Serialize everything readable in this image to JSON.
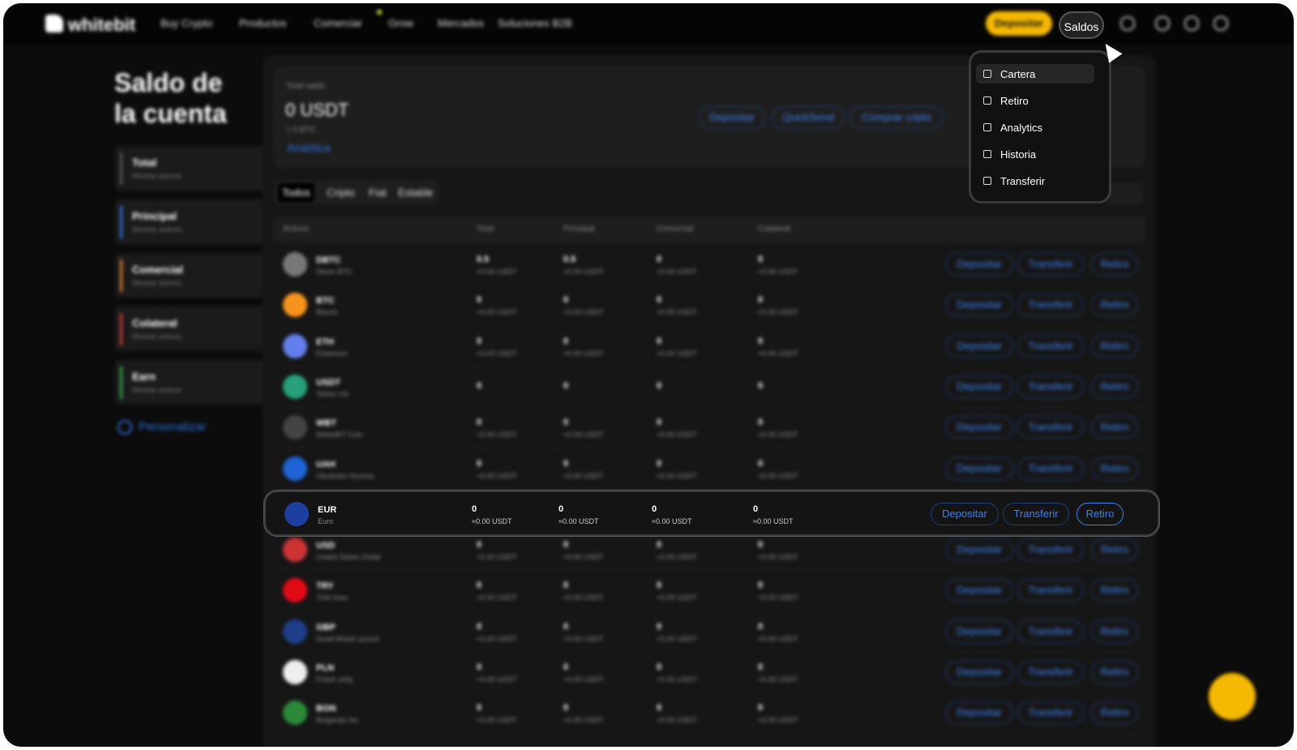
{
  "nav": {
    "logo": "whitebit",
    "items": [
      "Buy Crypto",
      "Productos",
      "Comerciar",
      "Grow",
      "Mercados",
      "Soluciones B2B"
    ],
    "deposit": "Depositar",
    "balances": "Saldos"
  },
  "dropdown": [
    "Cartera",
    "Retiro",
    "Analytics",
    "Historia",
    "Transferir"
  ],
  "sidebar": {
    "title_line1": "Saldo de",
    "title_line2": "la cuenta",
    "accounts": [
      {
        "name": "Total",
        "sub": "Mostrar activos"
      },
      {
        "name": "Principal",
        "sub": "Mostrar activos"
      },
      {
        "name": "Comercial",
        "sub": "Mostrar activos"
      },
      {
        "name": "Colateral",
        "sub": "Mostrar activos"
      },
      {
        "name": "Earn",
        "sub": "Mostrar activos"
      }
    ],
    "customize": "Personalizar"
  },
  "summary": {
    "label": "Total saldo",
    "amount": "0 USDT",
    "btc": "≈ 0 BTC",
    "analytics": "Analítica",
    "buttons": [
      "Depositar",
      "QuickSend",
      "Comprar cripto"
    ]
  },
  "filters": [
    "Todos",
    "Cripto",
    "Fiat",
    "Estable"
  ],
  "table": {
    "header": [
      "Activos",
      "Total",
      "Principal",
      "Comercial",
      "Colateral"
    ],
    "actions": [
      "Depositar",
      "Transferir",
      "Retiro"
    ],
    "rows": [
      {
        "ticker": "DBTC",
        "name": "Demo BTC",
        "cells": [
          {
            "amount": 0.5,
            "usdt": "≈0.00 USDT"
          },
          {
            "amount": 0.5,
            "usdt": "≈0.00 USDT"
          },
          {
            "amount": 0,
            "usdt": "≈0.00 USDT"
          },
          {
            "amount": 0,
            "usdt": "≈0.00 USDT"
          }
        ]
      },
      {
        "ticker": "BTC",
        "name": "Bitcoin",
        "cells": [
          {
            "amount": 0,
            "usdt": "≈0.00 USDT"
          },
          {
            "amount": 0,
            "usdt": "≈0.00 USDT"
          },
          {
            "amount": 0,
            "usdt": "≈0.00 USDT"
          },
          {
            "amount": 0,
            "usdt": "≈0.00 USDT"
          }
        ]
      },
      {
        "ticker": "ETH",
        "name": "Ethereum",
        "cells": [
          {
            "amount": 0,
            "usdt": "≈0.00 USDT"
          },
          {
            "amount": 0,
            "usdt": "≈0.00 USDT"
          },
          {
            "amount": 0,
            "usdt": "≈0.00 USDT"
          },
          {
            "amount": 0,
            "usdt": "≈0.00 USDT"
          }
        ]
      },
      {
        "ticker": "USDT",
        "name": "Tether US",
        "cells": [
          {
            "amount": 0
          },
          {
            "amount": 0
          },
          {
            "amount": 0
          },
          {
            "amount": 0
          }
        ]
      },
      {
        "ticker": "WBT",
        "name": "WhiteBIT Coin",
        "cells": [
          {
            "amount": 0,
            "usdt": "≈0.00 USDT"
          },
          {
            "amount": 0,
            "usdt": "≈0.00 USDT"
          },
          {
            "amount": 0,
            "usdt": "≈0.00 USDT"
          },
          {
            "amount": 0,
            "usdt": "≈0.00 USDT"
          }
        ]
      },
      {
        "ticker": "UAH",
        "name": "Ukrainian Hryvnia",
        "cells": [
          {
            "amount": 0,
            "usdt": "≈0.00 USDT"
          },
          {
            "amount": 0,
            "usdt": "≈0.00 USDT"
          },
          {
            "amount": 0,
            "usdt": "≈0.00 USDT"
          },
          {
            "amount": 0,
            "usdt": "≈0.00 USDT"
          }
        ]
      },
      {
        "ticker": "EUR",
        "name": "Euro",
        "cells": [
          {
            "amount": 0,
            "usdt": "≈0.00 USDT"
          },
          {
            "amount": 0,
            "usdt": "≈0.00 USDT"
          },
          {
            "amount": 0,
            "usdt": "≈0.00 USDT"
          },
          {
            "amount": 0,
            "usdt": "≈0.00 USDT"
          }
        ]
      },
      {
        "ticker": "USD",
        "name": "United States Dollar",
        "cells": [
          {
            "amount": 0,
            "usdt": "≈0.00 USDT"
          },
          {
            "amount": 0,
            "usdt": "≈0.00 USDT"
          },
          {
            "amount": 0,
            "usdt": "≈0.00 USDT"
          },
          {
            "amount": 0,
            "usdt": "≈0.00 USDT"
          }
        ]
      },
      {
        "ticker": "TRY",
        "name": "Türk lirası",
        "cells": [
          {
            "amount": 0,
            "usdt": "≈0.00 USDT"
          },
          {
            "amount": 0,
            "usdt": "≈0.00 USDT"
          },
          {
            "amount": 0,
            "usdt": "≈0.00 USDT"
          },
          {
            "amount": 0,
            "usdt": "≈0.00 USDT"
          }
        ]
      },
      {
        "ticker": "GBP",
        "name": "Great British pound",
        "cells": [
          {
            "amount": 0,
            "usdt": "≈0.00 USDT"
          },
          {
            "amount": 0,
            "usdt": "≈0.00 USDT"
          },
          {
            "amount": 0,
            "usdt": "≈0.00 USDT"
          },
          {
            "amount": 0,
            "usdt": "≈0.00 USDT"
          }
        ]
      },
      {
        "ticker": "PLN",
        "name": "Polish zloty",
        "cells": [
          {
            "amount": 0,
            "usdt": "≈0.00 USDT"
          },
          {
            "amount": 0,
            "usdt": "≈0.00 USDT"
          },
          {
            "amount": 0,
            "usdt": "≈0.00 USDT"
          },
          {
            "amount": 0,
            "usdt": "≈0.00 USDT"
          }
        ]
      },
      {
        "ticker": "BGN",
        "name": "Bulgarian lev",
        "cells": [
          {
            "amount": 0,
            "usdt": "≈0.00 USDT"
          },
          {
            "amount": 0,
            "usdt": "≈0.00 USDT"
          },
          {
            "amount": 0,
            "usdt": "≈0.00 USDT"
          },
          {
            "amount": 0,
            "usdt": "≈0.00 USDT"
          }
        ]
      }
    ]
  }
}
